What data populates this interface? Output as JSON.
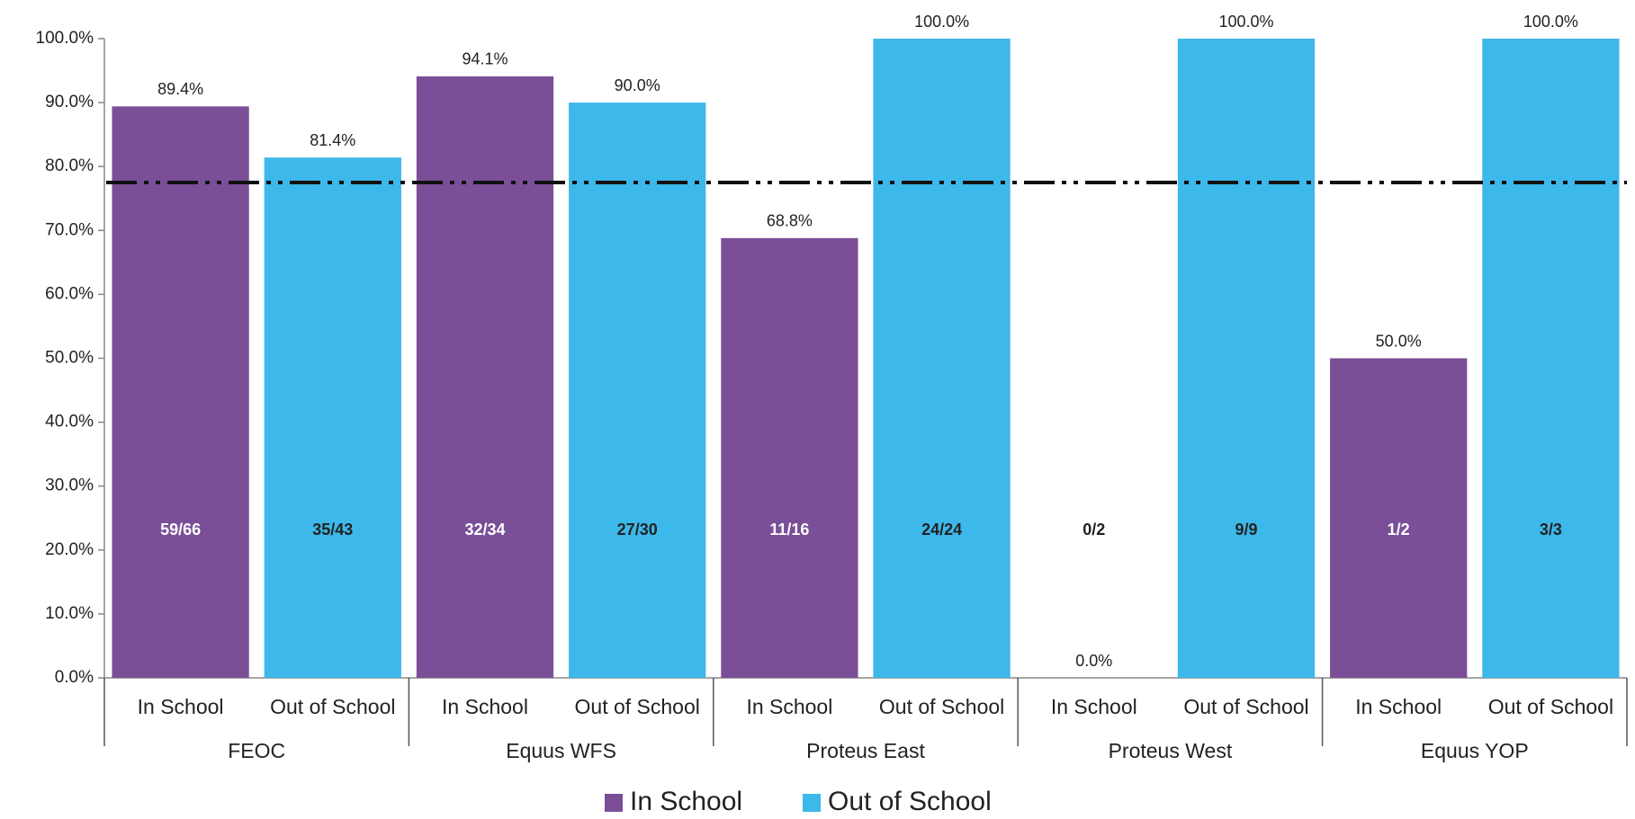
{
  "chart_data": {
    "type": "bar",
    "categories": [
      "FEOC",
      "Equus WFS",
      "Proteus East",
      "Proteus West",
      "Equus YOP"
    ],
    "series": [
      {
        "name": "In School",
        "color": "#7b4f98",
        "values": [
          89.4,
          94.1,
          68.8,
          0,
          50.0
        ],
        "value_labels": [
          "89.4%",
          "94.1%",
          "68.8%",
          "0.0%",
          "50.0%"
        ],
        "fractions": [
          "59/66",
          "32/34",
          "11/16",
          "0/2",
          "1/2"
        ]
      },
      {
        "name": "Out of School",
        "color": "#3db8ea",
        "values": [
          81.4,
          90.0,
          100.0,
          100.0,
          100.0
        ],
        "value_labels": [
          "81.4%",
          "90.0%",
          "100.0%",
          "100.0%",
          "100.0%"
        ],
        "fractions": [
          "35/43",
          "27/30",
          "24/24",
          "9/9",
          "3/3"
        ]
      }
    ],
    "target": 77.5,
    "ylim": [
      0,
      100
    ],
    "yticks": [
      {
        "value": 0,
        "label": "0.0%"
      },
      {
        "value": 10,
        "label": "10.0%"
      },
      {
        "value": 20,
        "label": "20.0%"
      },
      {
        "value": 30,
        "label": "30.0%"
      },
      {
        "value": 40,
        "label": "40.0%"
      },
      {
        "value": 50,
        "label": "50.0%"
      },
      {
        "value": 60,
        "label": "60.0%"
      },
      {
        "value": 70,
        "label": "70.0%"
      },
      {
        "value": 80,
        "label": "80.0%"
      },
      {
        "value": 90,
        "label": "90.0%"
      },
      {
        "value": 100,
        "label": "100.0%"
      }
    ],
    "legend": "bottom"
  }
}
